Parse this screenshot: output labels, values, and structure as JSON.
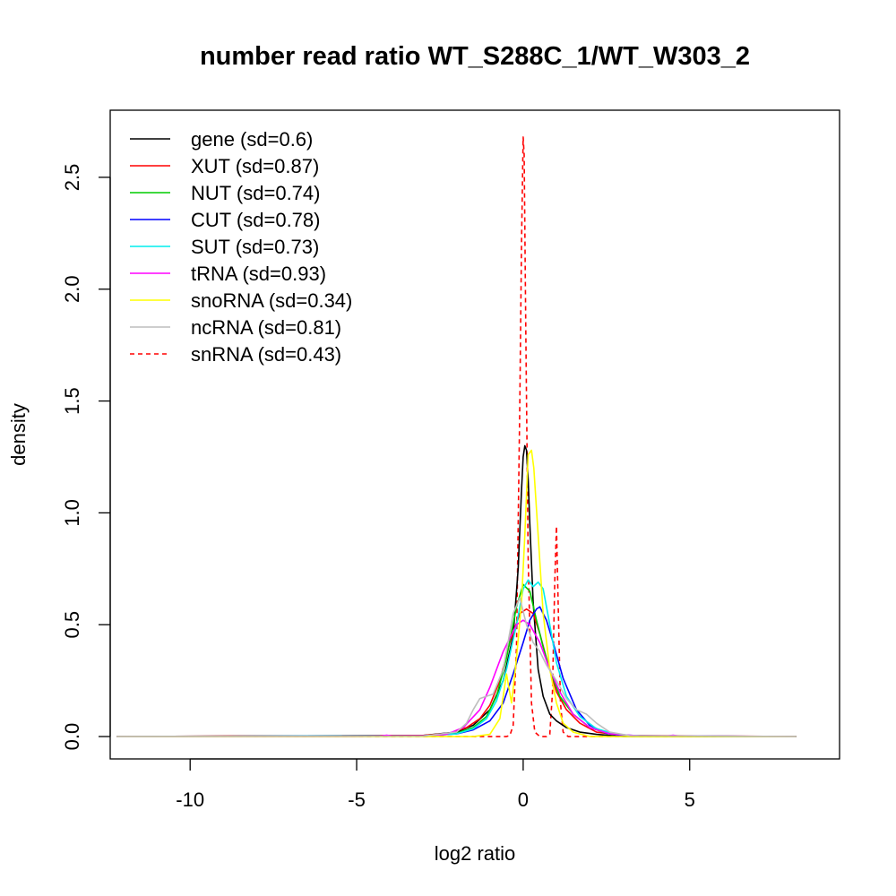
{
  "chart_data": {
    "type": "line",
    "title": "number read ratio WT_S288C_1/WT_W303_2",
    "xlabel": "log2 ratio",
    "ylabel": "density",
    "xlim": [
      -12.4,
      9.5
    ],
    "ylim": [
      -0.1,
      2.8
    ],
    "x_ticks": [
      -10,
      -5,
      0,
      5
    ],
    "x_tick_labels": [
      "-10",
      "-5",
      "0",
      "5"
    ],
    "y_ticks": [
      0.0,
      0.5,
      1.0,
      1.5,
      2.0,
      2.5
    ],
    "y_tick_labels": [
      "0.0",
      "0.5",
      "1.0",
      "1.5",
      "2.0",
      "2.5"
    ],
    "grid": false,
    "legend_position": "top-left",
    "series": [
      {
        "name": "gene (sd=0.6)",
        "color": "#000000",
        "dash": "solid",
        "x": [
          -12.2,
          -3,
          -2,
          -1.5,
          -1,
          -0.6,
          -0.3,
          -0.15,
          -0.05,
          0,
          0.05,
          0.1,
          0.15,
          0.2,
          0.3,
          0.45,
          0.6,
          0.8,
          1,
          1.3,
          1.7,
          2.2,
          3,
          8.2
        ],
        "y": [
          0,
          0.005,
          0.02,
          0.05,
          0.12,
          0.25,
          0.45,
          0.75,
          1.1,
          1.25,
          1.3,
          1.28,
          1.15,
          0.95,
          0.6,
          0.3,
          0.18,
          0.1,
          0.07,
          0.04,
          0.02,
          0.01,
          0,
          0
        ]
      },
      {
        "name": "XUT (sd=0.87)",
        "color": "#ff0000",
        "dash": "solid",
        "x": [
          -12.2,
          -3,
          -2.2,
          -1.7,
          -1.3,
          -1,
          -0.7,
          -0.4,
          -0.1,
          0.1,
          0.3,
          0.5,
          0.7,
          1,
          1.3,
          1.7,
          2.2,
          3,
          8.2
        ],
        "y": [
          0,
          0.005,
          0.015,
          0.04,
          0.08,
          0.14,
          0.25,
          0.42,
          0.55,
          0.57,
          0.55,
          0.46,
          0.35,
          0.2,
          0.12,
          0.06,
          0.02,
          0.005,
          0
        ]
      },
      {
        "name": "NUT (sd=0.74)",
        "color": "#00cc00",
        "dash": "solid",
        "x": [
          -12.2,
          -3,
          -2,
          -1.5,
          -1.1,
          -0.8,
          -0.5,
          -0.2,
          0,
          0.2,
          0.4,
          0.6,
          0.8,
          1.1,
          1.5,
          2,
          2.5,
          3.2,
          8.2
        ],
        "y": [
          0,
          0.003,
          0.015,
          0.04,
          0.09,
          0.18,
          0.35,
          0.58,
          0.68,
          0.65,
          0.52,
          0.4,
          0.3,
          0.18,
          0.1,
          0.04,
          0.015,
          0.003,
          0
        ]
      },
      {
        "name": "CUT (sd=0.78)",
        "color": "#0000ff",
        "dash": "solid",
        "x": [
          -12.2,
          -3,
          -2,
          -1.5,
          -1,
          -0.6,
          -0.3,
          0,
          0.2,
          0.4,
          0.5,
          0.7,
          0.9,
          1.2,
          1.6,
          2,
          2.5,
          3,
          8.2
        ],
        "y": [
          0,
          0.003,
          0.012,
          0.03,
          0.07,
          0.15,
          0.28,
          0.42,
          0.52,
          0.57,
          0.58,
          0.52,
          0.42,
          0.26,
          0.12,
          0.05,
          0.015,
          0.004,
          0
        ]
      },
      {
        "name": "SUT (sd=0.73)",
        "color": "#00eeee",
        "dash": "solid",
        "x": [
          -12.2,
          -3,
          -2,
          -1.5,
          -1.1,
          -0.8,
          -0.5,
          -0.2,
          0,
          0.15,
          0.3,
          0.45,
          0.6,
          0.8,
          1,
          1.3,
          1.7,
          2.2,
          2.8,
          3.6,
          8.2
        ],
        "y": [
          0,
          0.003,
          0.012,
          0.035,
          0.08,
          0.16,
          0.3,
          0.5,
          0.66,
          0.7,
          0.67,
          0.69,
          0.66,
          0.5,
          0.33,
          0.18,
          0.09,
          0.035,
          0.01,
          0.002,
          0
        ]
      },
      {
        "name": "tRNA (sd=0.93)",
        "color": "#ff00ff",
        "dash": "solid",
        "x": [
          -12.2,
          -5,
          -4.3,
          -4.1,
          -3.9,
          -3,
          -2.3,
          -1.8,
          -1.3,
          -1,
          -0.6,
          -0.2,
          0,
          0.2,
          0.5,
          0.8,
          1.1,
          1.5,
          2,
          2.6,
          3.5,
          4.3,
          4.5,
          4.7,
          8.2
        ],
        "y": [
          0,
          0,
          0.002,
          0.006,
          0.002,
          0.003,
          0.01,
          0.04,
          0.12,
          0.22,
          0.38,
          0.5,
          0.52,
          0.5,
          0.42,
          0.3,
          0.2,
          0.1,
          0.04,
          0.012,
          0.003,
          0.002,
          0.006,
          0.002,
          0
        ]
      },
      {
        "name": "snoRNA (sd=0.34)",
        "color": "#ffff00",
        "dash": "solid",
        "x": [
          -12.2,
          -1.5,
          -1,
          -0.7,
          -0.5,
          -0.35,
          -0.2,
          -0.05,
          0.05,
          0.15,
          0.25,
          0.32,
          0.45,
          0.6,
          0.8,
          1,
          1.2,
          1.5,
          2,
          8.2
        ],
        "y": [
          0,
          0,
          0.01,
          0.08,
          0.28,
          0.15,
          0.35,
          0.6,
          0.9,
          1.26,
          1.28,
          1.2,
          0.9,
          0.55,
          0.3,
          0.15,
          0.06,
          0.02,
          0,
          0
        ]
      },
      {
        "name": "ncRNA (sd=0.81)",
        "color": "#bebebe",
        "dash": "solid",
        "x": [
          -12.2,
          -3,
          -2,
          -1.7,
          -1.5,
          -1.3,
          -1.1,
          -0.9,
          -0.6,
          -0.3,
          -0.1,
          0.1,
          0.3,
          0.5,
          0.7,
          1,
          1.3,
          1.6,
          1.9,
          2.2,
          2.6,
          3.2,
          8.2
        ],
        "y": [
          0,
          0.002,
          0.02,
          0.06,
          0.12,
          0.17,
          0.18,
          0.19,
          0.3,
          0.55,
          0.62,
          0.5,
          0.42,
          0.38,
          0.32,
          0.25,
          0.17,
          0.12,
          0.1,
          0.06,
          0.02,
          0.004,
          0
        ]
      },
      {
        "name": "snRNA (sd=0.43)",
        "color": "#ff0000",
        "dash": "dashed",
        "x": [
          -12.2,
          -0.5,
          -0.4,
          -0.3,
          -0.2,
          -0.1,
          -0.05,
          0,
          0.03,
          0.08,
          0.15,
          0.25,
          0.35,
          0.5,
          0.7,
          0.8,
          0.88,
          0.95,
          1.0,
          1.05,
          1.12,
          1.2,
          1.35,
          8.2
        ],
        "y": [
          0,
          0,
          0.005,
          0.05,
          0.4,
          1.5,
          2.2,
          2.68,
          2.6,
          1.8,
          0.8,
          0.15,
          0.02,
          0,
          0,
          0.01,
          0.2,
          0.7,
          0.94,
          0.6,
          0.15,
          0.02,
          0,
          0
        ]
      }
    ]
  }
}
